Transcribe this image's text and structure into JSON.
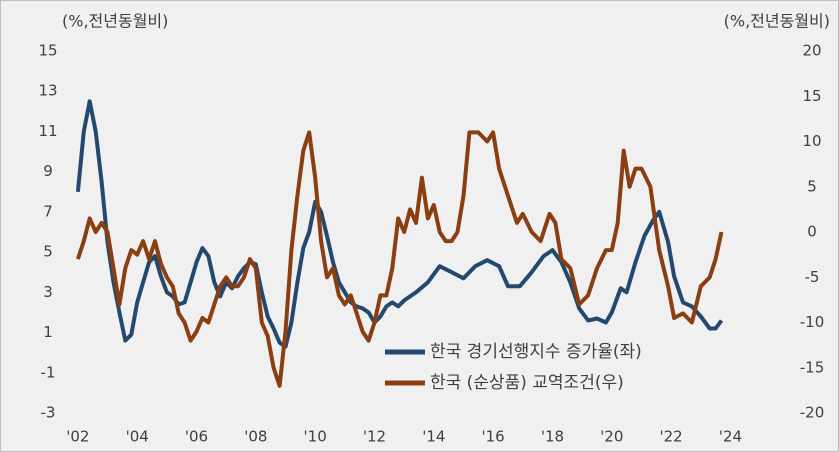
{
  "chart_data": {
    "type": "line",
    "y_label": "(%,전년동월비)",
    "y2_label": "(%,전년동월비)",
    "xlim": [
      2001.6,
      2025.3
    ],
    "xticks": [
      {
        "value": 2002,
        "label": "'02"
      },
      {
        "value": 2004,
        "label": "'04"
      },
      {
        "value": 2006,
        "label": "'06"
      },
      {
        "value": 2008,
        "label": "'08"
      },
      {
        "value": 2010,
        "label": "'10"
      },
      {
        "value": 2012,
        "label": "'12"
      },
      {
        "value": 2014,
        "label": "'14"
      },
      {
        "value": 2016,
        "label": "'16"
      },
      {
        "value": 2018,
        "label": "'18"
      },
      {
        "value": 2020,
        "label": "'20"
      },
      {
        "value": 2022,
        "label": "'22"
      },
      {
        "value": 2024,
        "label": "'24"
      }
    ],
    "ylim": [
      -3,
      15
    ],
    "yticks": [
      15,
      13,
      11,
      9,
      7,
      5,
      3,
      1,
      -1,
      -3
    ],
    "y2lim": [
      -20,
      20
    ],
    "y2ticks": [
      20,
      15,
      10,
      5,
      0,
      -5,
      -10,
      -15,
      -20
    ],
    "grid": false,
    "series": [
      {
        "name": "한국 경기선행지수 증가율(좌)",
        "color": "#24496f",
        "axis": "y",
        "x": [
          2002.0,
          2002.2,
          2002.4,
          2002.6,
          2002.8,
          2003.0,
          2003.2,
          2003.4,
          2003.6,
          2003.8,
          2004.0,
          2004.2,
          2004.4,
          2004.6,
          2004.8,
          2005.0,
          2005.2,
          2005.4,
          2005.6,
          2005.8,
          2006.0,
          2006.2,
          2006.4,
          2006.6,
          2006.8,
          2007.0,
          2007.2,
          2007.4,
          2007.6,
          2007.8,
          2008.0,
          2008.2,
          2008.4,
          2008.6,
          2008.8,
          2009.0,
          2009.2,
          2009.4,
          2009.6,
          2009.8,
          2010.0,
          2010.2,
          2010.4,
          2010.6,
          2010.8,
          2011.0,
          2011.2,
          2011.4,
          2011.6,
          2011.8,
          2012.0,
          2012.2,
          2012.4,
          2012.6,
          2012.8,
          2013.0,
          2013.4,
          2013.8,
          2014.2,
          2014.6,
          2015.0,
          2015.4,
          2015.8,
          2016.2,
          2016.5,
          2016.9,
          2017.3,
          2017.7,
          2018.0,
          2018.3,
          2018.6,
          2018.9,
          2019.2,
          2019.5,
          2019.8,
          2020.0,
          2020.3,
          2020.5,
          2020.8,
          2021.1,
          2021.4,
          2021.6,
          2021.9,
          2022.1,
          2022.4,
          2022.7,
          2023.0,
          2023.3,
          2023.5,
          2023.7
        ],
        "values": [
          8,
          11,
          12.5,
          11,
          8.5,
          5.5,
          3.5,
          2,
          0.6,
          0.9,
          2.5,
          3.5,
          4.5,
          4.8,
          3.8,
          3,
          2.8,
          2.4,
          2.5,
          3.5,
          4.5,
          5.2,
          4.8,
          3.5,
          2.8,
          3.5,
          3.2,
          3.8,
          4.2,
          4.5,
          4.4,
          3,
          1.8,
          1.2,
          0.5,
          0.3,
          1.5,
          3.5,
          5.2,
          6,
          7.5,
          7,
          5.8,
          4.5,
          3.5,
          3,
          2.5,
          2.3,
          2.2,
          2.0,
          1.5,
          1.8,
          2.3,
          2.5,
          2.3,
          2.6,
          3,
          3.5,
          4.3,
          4,
          3.7,
          4.3,
          4.6,
          4.3,
          3.3,
          3.3,
          4.0,
          4.8,
          5.1,
          4.5,
          3.5,
          2.2,
          1.6,
          1.7,
          1.5,
          2.0,
          3.2,
          3.0,
          4.5,
          5.8,
          6.6,
          7,
          5.5,
          3.8,
          2.5,
          2.3,
          1.8,
          1.2,
          1.2,
          1.6
        ]
      },
      {
        "name": "한국 (순상품) 교역조건(우)",
        "color": "#8a3e12",
        "axis": "y2",
        "x": [
          2002.0,
          2002.2,
          2002.4,
          2002.6,
          2002.8,
          2003.0,
          2003.2,
          2003.4,
          2003.6,
          2003.8,
          2004.0,
          2004.2,
          2004.4,
          2004.6,
          2004.8,
          2005.0,
          2005.2,
          2005.4,
          2005.6,
          2005.8,
          2006.0,
          2006.2,
          2006.4,
          2006.6,
          2006.8,
          2007.0,
          2007.2,
          2007.4,
          2007.6,
          2007.8,
          2008.0,
          2008.2,
          2008.4,
          2008.6,
          2008.8,
          2009.0,
          2009.2,
          2009.4,
          2009.6,
          2009.8,
          2010.0,
          2010.2,
          2010.4,
          2010.6,
          2010.8,
          2011.0,
          2011.2,
          2011.4,
          2011.6,
          2011.8,
          2012.0,
          2012.2,
          2012.4,
          2012.6,
          2012.8,
          2013.0,
          2013.2,
          2013.4,
          2013.6,
          2013.8,
          2014.0,
          2014.2,
          2014.4,
          2014.6,
          2014.8,
          2015.0,
          2015.2,
          2015.5,
          2015.8,
          2016.0,
          2016.2,
          2016.5,
          2016.8,
          2017.0,
          2017.3,
          2017.6,
          2017.9,
          2018.1,
          2018.3,
          2018.6,
          2018.9,
          2019.2,
          2019.5,
          2019.8,
          2020.0,
          2020.2,
          2020.4,
          2020.6,
          2020.8,
          2021.0,
          2021.3,
          2021.6,
          2021.9,
          2022.1,
          2022.4,
          2022.7,
          2023.0,
          2023.3,
          2023.5,
          2023.7
        ],
        "values": [
          -3,
          -1,
          1.5,
          0,
          1,
          0,
          -4,
          -8,
          -4,
          -2,
          -2.5,
          -1,
          -3,
          -1,
          -3.5,
          -5,
          -6,
          -9,
          -10,
          -12,
          -11,
          -9.5,
          -10,
          -8,
          -6,
          -5,
          -6,
          -6,
          -5,
          -3,
          -4,
          -10,
          -11.5,
          -15,
          -17,
          -11,
          -2,
          4,
          9,
          11,
          6,
          -1,
          -5,
          -4,
          -7,
          -8,
          -7,
          -9,
          -11,
          -12,
          -10,
          -7,
          -7,
          -4,
          1.5,
          0,
          2.5,
          1,
          6,
          1.5,
          3,
          0,
          -1,
          -1,
          0,
          4,
          11,
          11,
          10,
          11,
          7,
          4,
          1,
          2,
          0,
          -1,
          2,
          1,
          -3,
          -4,
          -8,
          -7,
          -4,
          -2,
          -2,
          1,
          9,
          5,
          7,
          7,
          5,
          -2,
          -6,
          -9.5,
          -9,
          -10,
          -6,
          -5,
          -3,
          0
        ]
      }
    ]
  }
}
